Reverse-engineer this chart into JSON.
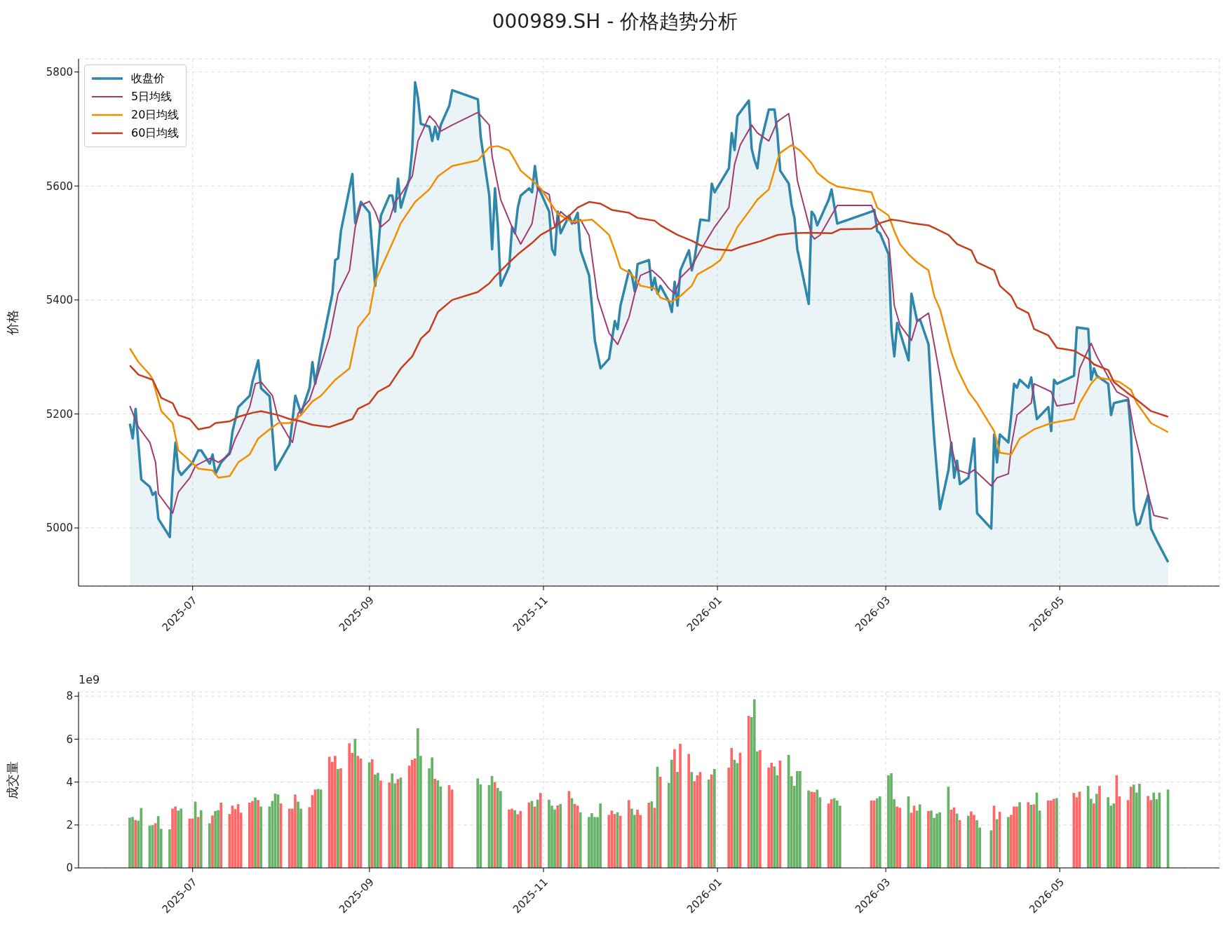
{
  "chart_data": [
    {
      "type": "line",
      "title": "000989.SH - 价格趋势分析",
      "ylabel": "价格",
      "xlim": [
        "2025-05-22",
        "2026-06-26"
      ],
      "xticks": [
        "2025-07",
        "2025-09",
        "2025-11",
        "2026-01",
        "2026-03",
        "2026-05"
      ],
      "ylim": [
        4898,
        5823
      ],
      "yticks": [
        5000,
        5200,
        5400,
        5600,
        5800
      ],
      "grid": true,
      "legend": "top left",
      "series": [
        {
          "name": "收盘价",
          "type": "area",
          "color": "#2e86ab",
          "x": [
            "2025-06-09",
            "2025-06-10",
            "2025-06-11",
            "2025-06-13",
            "2025-06-16",
            "2025-06-17",
            "2025-06-18",
            "2025-06-19",
            "2025-06-23",
            "2025-06-24",
            "2025-06-25",
            "2025-06-26",
            "2025-06-27",
            "2025-07-01",
            "2025-07-03",
            "2025-07-04",
            "2025-07-07",
            "2025-07-08",
            "2025-07-09",
            "2025-07-11",
            "2025-07-14",
            "2025-07-15",
            "2025-07-17",
            "2025-07-21",
            "2025-07-22",
            "2025-07-24",
            "2025-07-25",
            "2025-07-28",
            "2025-07-30",
            "2025-08-04",
            "2025-08-06",
            "2025-08-08",
            "2025-08-11",
            "2025-08-12",
            "2025-08-13",
            "2025-08-15",
            "2025-08-19",
            "2025-08-20",
            "2025-08-21",
            "2025-08-22",
            "2025-08-26",
            "2025-08-27",
            "2025-08-29",
            "2025-09-01",
            "2025-09-03",
            "2025-09-05",
            "2025-09-08",
            "2025-09-09",
            "2025-09-10",
            "2025-09-11",
            "2025-09-12",
            "2025-09-15",
            "2025-09-16",
            "2025-09-17",
            "2025-09-18",
            "2025-09-19",
            "2025-09-22",
            "2025-09-23",
            "2025-09-24",
            "2025-09-25",
            "2025-09-26",
            "2025-09-29",
            "2025-09-30",
            "2025-10-09",
            "2025-10-10",
            "2025-10-13",
            "2025-10-14",
            "2025-10-15",
            "2025-10-16",
            "2025-10-17",
            "2025-10-20",
            "2025-10-21",
            "2025-10-22",
            "2025-10-23",
            "2025-10-24",
            "2025-10-27",
            "2025-10-28",
            "2025-10-29",
            "2025-10-30",
            "2025-10-31",
            "2025-11-03",
            "2025-11-04",
            "2025-11-05",
            "2025-11-06",
            "2025-11-07",
            "2025-11-10",
            "2025-11-11",
            "2025-11-12",
            "2025-11-13",
            "2025-11-14",
            "2025-11-17",
            "2025-11-18",
            "2025-11-19",
            "2025-11-21",
            "2025-11-24",
            "2025-11-26",
            "2025-11-27",
            "2025-11-28",
            "2025-12-01",
            "2025-12-02",
            "2025-12-03",
            "2025-12-04",
            "2025-12-08",
            "2025-12-09",
            "2025-12-10",
            "2025-12-11",
            "2025-12-12",
            "2025-12-15",
            "2025-12-16",
            "2025-12-17",
            "2025-12-18",
            "2025-12-19",
            "2025-12-22",
            "2025-12-23",
            "2025-12-24",
            "2025-12-26",
            "2025-12-29",
            "2025-12-30",
            "2025-12-31",
            "2026-01-05",
            "2026-01-06",
            "2026-01-07",
            "2026-01-08",
            "2026-01-12",
            "2026-01-13",
            "2026-01-14",
            "2026-01-15",
            "2026-01-16",
            "2026-01-19",
            "2026-01-21",
            "2026-01-22",
            "2026-01-23",
            "2026-01-26",
            "2026-01-27",
            "2026-01-28",
            "2026-01-29",
            "2026-02-02",
            "2026-02-03",
            "2026-02-04",
            "2026-02-05",
            "2026-02-09",
            "2026-02-10",
            "2026-02-12",
            "2026-02-24",
            "2026-02-25",
            "2026-02-26",
            "2026-02-27",
            "2026-03-02",
            "2026-03-03",
            "2026-03-04",
            "2026-03-05",
            "2026-03-09",
            "2026-03-10",
            "2026-03-12",
            "2026-03-13",
            "2026-03-16",
            "2026-03-17",
            "2026-03-18",
            "2026-03-20",
            "2026-03-23",
            "2026-03-24",
            "2026-03-25",
            "2026-03-26",
            "2026-03-27",
            "2026-03-30",
            "2026-04-01",
            "2026-04-02",
            "2026-04-07",
            "2026-04-08",
            "2026-04-09",
            "2026-04-10",
            "2026-04-13",
            "2026-04-14",
            "2026-04-15",
            "2026-04-16",
            "2026-04-17",
            "2026-04-20",
            "2026-04-21",
            "2026-04-22",
            "2026-04-23",
            "2026-04-27",
            "2026-04-28",
            "2026-04-29",
            "2026-04-30",
            "2026-05-06",
            "2026-05-07",
            "2026-05-11",
            "2026-05-12",
            "2026-05-13",
            "2026-05-14",
            "2026-05-18",
            "2026-05-19",
            "2026-05-20",
            "2026-05-25",
            "2026-05-26",
            "2026-05-27",
            "2026-05-28",
            "2026-05-29",
            "2026-06-01",
            "2026-06-02",
            "2026-06-04",
            "2026-06-08"
          ],
          "values": [
            5183,
            5157,
            5209,
            5085,
            5072,
            5058,
            5063,
            5016,
            4984,
            5088,
            5150,
            5102,
            5093,
            5115,
            5136,
            5136,
            5113,
            5129,
            5095,
            5115,
            5132,
            5170,
            5212,
            5232,
            5257,
            5294,
            5245,
            5231,
            5102,
            5146,
            5232,
            5201,
            5246,
            5291,
            5253,
            5312,
            5411,
            5470,
            5473,
            5521,
            5621,
            5535,
            5572,
            5553,
            5425,
            5548,
            5583,
            5583,
            5555,
            5613,
            5562,
            5613,
            5665,
            5782,
            5755,
            5709,
            5704,
            5679,
            5704,
            5682,
            5707,
            5741,
            5768,
            5752,
            5686,
            5583,
            5489,
            5596,
            5531,
            5425,
            5459,
            5528,
            5517,
            5562,
            5583,
            5596,
            5589,
            5635,
            5596,
            5589,
            5555,
            5489,
            5479,
            5555,
            5517,
            5548,
            5534,
            5541,
            5553,
            5487,
            5443,
            5388,
            5329,
            5280,
            5297,
            5363,
            5349,
            5390,
            5452,
            5443,
            5415,
            5463,
            5470,
            5418,
            5439,
            5411,
            5425,
            5397,
            5379,
            5432,
            5390,
            5452,
            5487,
            5452,
            5473,
            5541,
            5539,
            5604,
            5589,
            5631,
            5693,
            5663,
            5723,
            5750,
            5665,
            5645,
            5631,
            5672,
            5734,
            5734,
            5693,
            5627,
            5604,
            5566,
            5544,
            5489,
            5393,
            5555,
            5548,
            5531,
            5576,
            5594,
            5534,
            5555,
            5558,
            5521,
            5517,
            5480,
            5349,
            5301,
            5360,
            5294,
            5411,
            5363,
            5366,
            5322,
            5232,
            5157,
            5033,
            5102,
            5150,
            5088,
            5118,
            5077,
            5088,
            5157,
            5026,
            4999,
            5164,
            5115,
            5164,
            5150,
            5198,
            5253,
            5246,
            5260,
            5246,
            5264,
            5225,
            5191,
            5212,
            5170,
            5260,
            5253,
            5267,
            5352,
            5349,
            5260,
            5280,
            5267,
            5253,
            5198,
            5219,
            5225,
            5164,
            5033,
            5005,
            5008,
            5058,
            4999,
            4978,
            4940
          ]
        },
        {
          "name": "5日均线",
          "type": "line",
          "color": "#a23b72",
          "x": [
            "2025-06-09",
            "2025-06-12",
            "2025-06-16",
            "2025-06-18",
            "2025-06-19",
            "2025-06-20",
            "2025-06-24",
            "2025-06-26",
            "2025-06-30",
            "2025-07-02",
            "2025-07-07",
            "2025-07-08",
            "2025-07-10",
            "2025-07-14",
            "2025-07-16",
            "2025-07-18",
            "2025-07-21",
            "2025-07-23",
            "2025-07-25",
            "2025-07-29",
            "2025-07-31",
            "2025-08-04",
            "2025-08-05",
            "2025-08-07",
            "2025-08-11",
            "2025-08-14",
            "2025-08-18",
            "2025-08-21",
            "2025-08-25",
            "2025-08-27",
            "2025-08-29",
            "2025-09-01",
            "2025-09-03",
            "2025-09-05",
            "2025-09-08",
            "2025-09-10",
            "2025-09-12",
            "2025-09-16",
            "2025-09-18",
            "2025-09-22",
            "2025-09-24",
            "2025-09-26",
            "2025-09-30",
            "2025-10-09",
            "2025-10-13",
            "2025-10-14",
            "2025-10-17",
            "2025-10-21",
            "2025-10-24",
            "2025-10-28",
            "2025-10-30",
            "2025-11-03",
            "2025-11-05",
            "2025-11-07",
            "2025-11-12",
            "2025-11-14",
            "2025-11-17",
            "2025-11-20",
            "2025-11-24",
            "2025-11-27",
            "2025-12-01",
            "2025-12-03",
            "2025-12-05",
            "2025-12-09",
            "2025-12-12",
            "2025-12-15",
            "2025-12-17",
            "2025-12-19",
            "2025-12-23",
            "2025-12-26",
            "2025-12-31",
            "2026-01-05",
            "2026-01-07",
            "2026-01-09",
            "2026-01-13",
            "2026-01-15",
            "2026-01-19",
            "2026-01-22",
            "2026-01-26",
            "2026-01-28",
            "2026-01-29",
            "2026-02-03",
            "2026-02-04",
            "2026-02-06",
            "2026-02-12",
            "2026-02-24",
            "2026-02-26",
            "2026-03-02",
            "2026-03-04",
            "2026-03-06",
            "2026-03-10",
            "2026-03-12",
            "2026-03-16",
            "2026-03-18",
            "2026-03-20",
            "2026-03-24",
            "2026-03-26",
            "2026-03-30",
            "2026-04-01",
            "2026-04-07",
            "2026-04-09",
            "2026-04-13",
            "2026-04-14",
            "2026-04-16",
            "2026-04-21",
            "2026-04-22",
            "2026-04-28",
            "2026-04-30",
            "2026-05-06",
            "2026-05-08",
            "2026-05-12",
            "2026-05-14",
            "2026-05-19",
            "2026-05-21",
            "2026-05-25",
            "2026-05-27",
            "2026-05-29",
            "2026-06-01",
            "2026-06-03",
            "2026-06-08"
          ],
          "values": [
            5214,
            5177,
            5150,
            5115,
            5060,
            5053,
            5026,
            5063,
            5088,
            5109,
            5122,
            5121,
            5115,
            5129,
            5157,
            5177,
            5212,
            5253,
            5256,
            5232,
            5191,
            5157,
            5150,
            5201,
            5225,
            5270,
            5335,
            5411,
            5452,
            5528,
            5566,
            5573,
            5555,
            5528,
            5541,
            5572,
            5585,
            5617,
            5679,
            5723,
            5713,
            5696,
            5707,
            5729,
            5707,
            5652,
            5576,
            5528,
            5498,
            5534,
            5596,
            5585,
            5528,
            5555,
            5534,
            5541,
            5513,
            5404,
            5342,
            5322,
            5370,
            5411,
            5443,
            5452,
            5439,
            5420,
            5411,
            5439,
            5459,
            5487,
            5528,
            5562,
            5638,
            5672,
            5707,
            5693,
            5679,
            5713,
            5727,
            5658,
            5610,
            5514,
            5507,
            5514,
            5566,
            5566,
            5541,
            5507,
            5390,
            5356,
            5329,
            5363,
            5377,
            5322,
            5267,
            5143,
            5102,
            5095,
            5102,
            5074,
            5088,
            5095,
            5143,
            5198,
            5219,
            5253,
            5239,
            5214,
            5219,
            5280,
            5324,
            5301,
            5256,
            5239,
            5228,
            5170,
            5129,
            5060,
            5022,
            5016
          ]
        },
        {
          "name": "20日均线",
          "type": "line",
          "color": "#f18f01",
          "x": [
            "2025-06-09",
            "2025-06-12",
            "2025-06-16",
            "2025-06-17",
            "2025-06-20",
            "2025-06-24",
            "2025-06-26",
            "2025-06-30",
            "2025-07-03",
            "2025-07-08",
            "2025-07-10",
            "2025-07-14",
            "2025-07-17",
            "2025-07-21",
            "2025-07-24",
            "2025-07-28",
            "2025-07-31",
            "2025-08-04",
            "2025-08-08",
            "2025-08-12",
            "2025-08-15",
            "2025-08-20",
            "2025-08-25",
            "2025-08-28",
            "2025-09-01",
            "2025-09-03",
            "2025-09-05",
            "2025-09-10",
            "2025-09-12",
            "2025-09-17",
            "2025-09-22",
            "2025-09-25",
            "2025-09-30",
            "2025-10-09",
            "2025-10-13",
            "2025-10-16",
            "2025-10-20",
            "2025-10-22",
            "2025-10-24",
            "2025-10-28",
            "2025-10-31",
            "2025-11-04",
            "2025-11-06",
            "2025-11-11",
            "2025-11-14",
            "2025-11-18",
            "2025-11-21",
            "2025-11-24",
            "2025-11-26",
            "2025-11-28",
            "2025-12-01",
            "2025-12-03",
            "2025-12-05",
            "2025-12-10",
            "2025-12-12",
            "2025-12-16",
            "2025-12-19",
            "2025-12-23",
            "2025-12-25",
            "2025-12-30",
            "2026-01-02",
            "2026-01-06",
            "2026-01-08",
            "2026-01-12",
            "2026-01-15",
            "2026-01-19",
            "2026-01-22",
            "2026-01-23",
            "2026-01-27",
            "2026-01-30",
            "2026-02-03",
            "2026-02-05",
            "2026-02-09",
            "2026-02-12",
            "2026-02-24",
            "2026-02-26",
            "2026-03-02",
            "2026-03-04",
            "2026-03-06",
            "2026-03-09",
            "2026-03-12",
            "2026-03-16",
            "2026-03-18",
            "2026-03-20",
            "2026-03-24",
            "2026-03-26",
            "2026-03-30",
            "2026-04-02",
            "2026-04-08",
            "2026-04-10",
            "2026-04-14",
            "2026-04-17",
            "2026-04-22",
            "2026-04-28",
            "2026-05-06",
            "2026-05-08",
            "2026-05-12",
            "2026-05-14",
            "2026-05-19",
            "2026-05-22",
            "2026-05-26",
            "2026-05-28",
            "2026-06-02",
            "2026-06-08"
          ],
          "values": [
            5315,
            5291,
            5269,
            5260,
            5205,
            5184,
            5136,
            5118,
            5104,
            5101,
            5088,
            5091,
            5115,
            5129,
            5157,
            5173,
            5184,
            5184,
            5198,
            5222,
            5232,
            5260,
            5280,
            5352,
            5377,
            5432,
            5455,
            5511,
            5535,
            5572,
            5594,
            5617,
            5635,
            5645,
            5668,
            5670,
            5662,
            5645,
            5627,
            5610,
            5596,
            5566,
            5551,
            5537,
            5539,
            5541,
            5528,
            5514,
            5487,
            5456,
            5448,
            5439,
            5425,
            5420,
            5404,
            5397,
            5407,
            5425,
            5445,
            5459,
            5470,
            5507,
            5528,
            5555,
            5576,
            5594,
            5645,
            5658,
            5672,
            5662,
            5640,
            5623,
            5607,
            5599,
            5589,
            5562,
            5548,
            5521,
            5498,
            5480,
            5466,
            5452,
            5407,
            5384,
            5308,
            5280,
            5239,
            5219,
            5170,
            5132,
            5129,
            5157,
            5173,
            5184,
            5191,
            5219,
            5253,
            5264,
            5260,
            5256,
            5242,
            5219,
            5184,
            5168
          ]
        },
        {
          "name": "60日均线",
          "type": "line",
          "color": "#c73e1d",
          "x": [
            "2025-06-09",
            "2025-06-12",
            "2025-06-17",
            "2025-06-20",
            "2025-06-24",
            "2025-06-26",
            "2025-06-30",
            "2025-07-03",
            "2025-07-07",
            "2025-07-09",
            "2025-07-14",
            "2025-07-17",
            "2025-07-22",
            "2025-07-25",
            "2025-07-31",
            "2025-08-04",
            "2025-08-08",
            "2025-08-12",
            "2025-08-18",
            "2025-08-22",
            "2025-08-26",
            "2025-08-28",
            "2025-09-01",
            "2025-09-04",
            "2025-09-08",
            "2025-09-12",
            "2025-09-16",
            "2025-09-19",
            "2025-09-22",
            "2025-09-25",
            "2025-09-30",
            "2025-10-09",
            "2025-10-13",
            "2025-10-15",
            "2025-10-20",
            "2025-10-23",
            "2025-10-28",
            "2025-10-31",
            "2025-11-05",
            "2025-11-10",
            "2025-11-13",
            "2025-11-17",
            "2025-11-21",
            "2025-11-25",
            "2025-12-01",
            "2025-12-04",
            "2025-12-10",
            "2025-12-12",
            "2025-12-18",
            "2025-12-23",
            "2025-12-26",
            "2025-12-31",
            "2026-01-06",
            "2026-01-09",
            "2026-01-16",
            "2026-01-22",
            "2026-01-27",
            "2026-02-02",
            "2026-02-10",
            "2026-02-13",
            "2026-02-24",
            "2026-02-27",
            "2026-03-03",
            "2026-03-06",
            "2026-03-10",
            "2026-03-16",
            "2026-03-19",
            "2026-03-23",
            "2026-03-26",
            "2026-03-31",
            "2026-04-02",
            "2026-04-08",
            "2026-04-10",
            "2026-04-14",
            "2026-04-16",
            "2026-04-20",
            "2026-04-22",
            "2026-04-27",
            "2026-04-30",
            "2026-05-06",
            "2026-05-11",
            "2026-05-13",
            "2026-05-18",
            "2026-05-20",
            "2026-05-25",
            "2026-05-28",
            "2026-06-02",
            "2026-06-08"
          ],
          "values": [
            5285,
            5269,
            5260,
            5228,
            5219,
            5198,
            5191,
            5173,
            5177,
            5184,
            5187,
            5195,
            5202,
            5205,
            5198,
            5191,
            5187,
            5181,
            5177,
            5184,
            5191,
            5209,
            5219,
            5239,
            5250,
            5280,
            5301,
            5332,
            5346,
            5379,
            5400,
            5414,
            5429,
            5441,
            5466,
            5480,
            5500,
            5514,
            5528,
            5548,
            5562,
            5572,
            5569,
            5558,
            5553,
            5544,
            5539,
            5531,
            5514,
            5504,
            5496,
            5489,
            5487,
            5493,
            5503,
            5514,
            5517,
            5518,
            5517,
            5524,
            5525,
            5535,
            5541,
            5539,
            5535,
            5531,
            5524,
            5514,
            5498,
            5487,
            5466,
            5452,
            5425,
            5407,
            5387,
            5377,
            5349,
            5338,
            5316,
            5311,
            5297,
            5287,
            5277,
            5256,
            5236,
            5225,
            5205,
            5195
          ]
        }
      ]
    },
    {
      "type": "bar",
      "ylabel": "成交量",
      "annotations": [
        "1e9"
      ],
      "xlim": [
        "2025-05-22",
        "2026-06-26"
      ],
      "xticks": [
        "2025-07",
        "2025-09",
        "2025-11",
        "2026-01",
        "2026-03",
        "2026-05"
      ],
      "ylim": [
        0,
        8.2
      ],
      "yticks": [
        0,
        2,
        4,
        6,
        8
      ],
      "grid": true,
      "x": [
        "2025-06-09",
        "2025-06-10",
        "2025-06-11",
        "2025-06-12",
        "2025-06-13",
        "2025-06-16",
        "2025-06-17",
        "2025-06-18",
        "2025-06-19",
        "2025-06-20",
        "2025-06-23",
        "2025-06-24",
        "2025-06-25",
        "2025-06-26",
        "2025-06-27",
        "2025-06-30",
        "2025-07-01",
        "2025-07-02",
        "2025-07-03",
        "2025-07-04",
        "2025-07-07",
        "2025-07-08",
        "2025-07-09",
        "2025-07-10",
        "2025-07-11",
        "2025-07-14",
        "2025-07-15",
        "2025-07-16",
        "2025-07-17",
        "2025-07-18",
        "2025-07-21",
        "2025-07-22",
        "2025-07-23",
        "2025-07-24",
        "2025-07-25",
        "2025-07-28",
        "2025-07-29",
        "2025-07-30",
        "2025-07-31",
        "2025-08-01",
        "2025-08-04",
        "2025-08-05",
        "2025-08-06",
        "2025-08-07",
        "2025-08-08",
        "2025-08-11",
        "2025-08-12",
        "2025-08-13",
        "2025-08-14",
        "2025-08-15",
        "2025-08-18",
        "2025-08-19",
        "2025-08-20",
        "2025-08-21",
        "2025-08-22",
        "2025-08-25",
        "2025-08-26",
        "2025-08-27",
        "2025-08-28",
        "2025-08-29",
        "2025-09-01",
        "2025-09-02",
        "2025-09-03",
        "2025-09-04",
        "2025-09-05",
        "2025-09-08",
        "2025-09-09",
        "2025-09-10",
        "2025-09-11",
        "2025-09-12",
        "2025-09-15",
        "2025-09-16",
        "2025-09-17",
        "2025-09-18",
        "2025-09-19",
        "2025-09-22",
        "2025-09-23",
        "2025-09-24",
        "2025-09-25",
        "2025-09-26",
        "2025-09-29",
        "2025-09-30",
        "2025-10-09",
        "2025-10-10",
        "2025-10-13",
        "2025-10-14",
        "2025-10-15",
        "2025-10-16",
        "2025-10-17",
        "2025-10-20",
        "2025-10-21",
        "2025-10-22",
        "2025-10-23",
        "2025-10-24",
        "2025-10-27",
        "2025-10-28",
        "2025-10-29",
        "2025-10-30",
        "2025-10-31",
        "2025-11-03",
        "2025-11-04",
        "2025-11-05",
        "2025-11-06",
        "2025-11-07",
        "2025-11-10",
        "2025-11-11",
        "2025-11-12",
        "2025-11-13",
        "2025-11-14",
        "2025-11-17",
        "2025-11-18",
        "2025-11-19",
        "2025-11-20",
        "2025-11-21",
        "2025-11-24",
        "2025-11-25",
        "2025-11-26",
        "2025-11-27",
        "2025-11-28",
        "2025-12-01",
        "2025-12-02",
        "2025-12-03",
        "2025-12-04",
        "2025-12-05",
        "2025-12-08",
        "2025-12-09",
        "2025-12-10",
        "2025-12-11",
        "2025-12-12",
        "2025-12-15",
        "2025-12-16",
        "2025-12-17",
        "2025-12-18",
        "2025-12-19",
        "2025-12-22",
        "2025-12-23",
        "2025-12-24",
        "2025-12-25",
        "2025-12-26",
        "2025-12-29",
        "2025-12-30",
        "2025-12-31",
        "2026-01-05",
        "2026-01-06",
        "2026-01-07",
        "2026-01-08",
        "2026-01-09",
        "2026-01-12",
        "2026-01-13",
        "2026-01-14",
        "2026-01-15",
        "2026-01-16",
        "2026-01-19",
        "2026-01-20",
        "2026-01-21",
        "2026-01-22",
        "2026-01-23",
        "2026-01-26",
        "2026-01-27",
        "2026-01-28",
        "2026-01-29",
        "2026-01-30",
        "2026-02-02",
        "2026-02-03",
        "2026-02-04",
        "2026-02-05",
        "2026-02-06",
        "2026-02-09",
        "2026-02-10",
        "2026-02-11",
        "2026-02-12",
        "2026-02-13",
        "2026-02-24",
        "2026-02-25",
        "2026-02-26",
        "2026-02-27",
        "2026-03-02",
        "2026-03-03",
        "2026-03-04",
        "2026-03-05",
        "2026-03-06",
        "2026-03-09",
        "2026-03-10",
        "2026-03-11",
        "2026-03-12",
        "2026-03-13",
        "2026-03-16",
        "2026-03-17",
        "2026-03-18",
        "2026-03-19",
        "2026-03-20",
        "2026-03-23",
        "2026-03-24",
        "2026-03-25",
        "2026-03-26",
        "2026-03-27",
        "2026-03-30",
        "2026-03-31",
        "2026-04-01",
        "2026-04-02",
        "2026-04-03",
        "2026-04-07",
        "2026-04-08",
        "2026-04-09",
        "2026-04-10",
        "2026-04-13",
        "2026-04-14",
        "2026-04-15",
        "2026-04-16",
        "2026-04-17",
        "2026-04-20",
        "2026-04-21",
        "2026-04-22",
        "2026-04-23",
        "2026-04-24",
        "2026-04-27",
        "2026-04-28",
        "2026-04-29",
        "2026-04-30",
        "2026-05-06",
        "2026-05-07",
        "2026-05-08",
        "2026-05-11",
        "2026-05-12",
        "2026-05-13",
        "2026-05-14",
        "2026-05-15",
        "2026-05-18",
        "2026-05-19",
        "2026-05-20",
        "2026-05-21",
        "2026-05-22",
        "2026-05-25",
        "2026-05-26",
        "2026-05-27",
        "2026-05-28",
        "2026-05-29",
        "2026-06-01",
        "2026-06-02",
        "2026-06-03",
        "2026-06-04",
        "2026-06-05",
        "2026-06-08"
      ],
      "values": [
        2.34,
        2.37,
        2.23,
        2.2,
        2.79,
        1.97,
        2.0,
        2.08,
        2.41,
        1.82,
        1.8,
        2.76,
        2.86,
        2.67,
        2.76,
        2.3,
        2.3,
        3.09,
        2.37,
        2.69,
        2.08,
        2.44,
        2.65,
        2.69,
        3.04,
        2.51,
        2.9,
        2.74,
        2.97,
        2.57,
        3.04,
        3.11,
        3.28,
        3.16,
        2.86,
        2.86,
        3.12,
        3.46,
        3.42,
        3.0,
        2.76,
        2.76,
        3.42,
        3.09,
        2.76,
        2.83,
        3.39,
        3.65,
        3.68,
        3.65,
        5.18,
        4.94,
        5.22,
        4.61,
        4.64,
        5.81,
        5.36,
        6.02,
        5.22,
        5.1,
        4.92,
        5.06,
        4.35,
        4.43,
        4.07,
        3.98,
        4.4,
        3.94,
        4.14,
        4.21,
        4.76,
        5.03,
        5.1,
        6.51,
        5.22,
        4.64,
        5.15,
        4.15,
        4.08,
        3.79,
        3.86,
        3.65,
        4.17,
        3.89,
        3.86,
        4.28,
        4.0,
        3.73,
        3.58,
        2.72,
        2.76,
        2.69,
        2.5,
        2.65,
        3.05,
        3.12,
        2.86,
        3.18,
        3.49,
        3.18,
        2.9,
        2.72,
        2.91,
        2.98,
        3.58,
        3.25,
        2.98,
        2.9,
        2.59,
        2.37,
        2.55,
        2.37,
        2.37,
        3.0,
        2.47,
        2.67,
        2.51,
        2.59,
        2.43,
        3.16,
        2.76,
        2.47,
        2.71,
        2.47,
        3.04,
        3.1,
        2.8,
        4.71,
        4.25,
        3.96,
        5.04,
        5.53,
        4.47,
        5.78,
        5.31,
        4.47,
        4.04,
        4.31,
        4.47,
        4.12,
        4.35,
        4.61,
        4.67,
        5.59,
        5.04,
        4.88,
        5.37,
        7.08,
        7.02,
        7.86,
        5.43,
        5.49,
        4.67,
        4.9,
        4.73,
        4.31,
        5.0,
        5.27,
        4.27,
        3.82,
        4.51,
        4.51,
        3.61,
        3.55,
        3.53,
        3.65,
        3.29,
        3.0,
        3.2,
        3.25,
        3.14,
        2.9,
        3.14,
        3.14,
        3.24,
        3.33,
        4.31,
        4.41,
        3.2,
        2.86,
        2.8,
        3.33,
        2.57,
        2.9,
        2.67,
        2.96,
        2.65,
        2.67,
        2.33,
        2.53,
        2.59,
        3.78,
        2.71,
        2.82,
        2.53,
        2.22,
        2.43,
        2.63,
        2.47,
        2.22,
        1.88,
        1.75,
        2.9,
        2.27,
        2.61,
        2.37,
        2.47,
        2.86,
        2.86,
        3.06,
        3.06,
        2.94,
        2.96,
        3.51,
        2.67,
        3.14,
        3.14,
        3.22,
        3.25,
        3.49,
        3.29,
        3.55,
        3.82,
        3.22,
        3.0,
        3.45,
        3.82,
        3.29,
        2.9,
        3.0,
        4.31,
        3.33,
        3.16,
        3.78,
        3.88,
        3.51,
        3.92,
        3.35,
        3.16,
        3.51,
        3.2,
        3.51,
        3.65
      ],
      "colors": [
        "#66b266",
        "#66b266",
        "#ff6666",
        "#66b266",
        "#66b266",
        "#66b266",
        "#66b266",
        "#ff6666",
        "#66b266",
        "#66b266",
        "#66b266",
        "#ff6666",
        "#ff6666",
        "#66b266",
        "#66b266",
        "#ff6666",
        "#ff6666",
        "#66b266",
        "#ff6666",
        "#66b266",
        "#66b266",
        "#ff6666",
        "#66b266",
        "#66b266",
        "#ff6666",
        "#ff6666",
        "#ff6666",
        "#ff6666",
        "#ff6666",
        "#ff6666",
        "#ff6666",
        "#ff6666",
        "#66b266",
        "#ff6666",
        "#66b266",
        "#66b266",
        "#66b266",
        "#66b266",
        "#66b266",
        "#ff6666",
        "#ff6666",
        "#ff6666",
        "#ff6666",
        "#66b266",
        "#66b266",
        "#ff6666",
        "#ff6666",
        "#ff6666",
        "#66b266",
        "#66b266",
        "#ff6666",
        "#ff6666",
        "#ff6666",
        "#66b266",
        "#ff6666",
        "#ff6666",
        "#ff6666",
        "#66b266",
        "#ff6666",
        "#ff6666",
        "#66b266",
        "#ff6666",
        "#66b266",
        "#66b266",
        "#ff6666",
        "#ff6666",
        "#66b266",
        "#66b266",
        "#ff6666",
        "#66b266",
        "#ff6666",
        "#ff6666",
        "#ff6666",
        "#66b266",
        "#66b266",
        "#66b266",
        "#66b266",
        "#ff6666",
        "#66b266",
        "#66b266",
        "#ff6666",
        "#ff6666",
        "#66b266",
        "#66b266",
        "#66b266",
        "#66b266",
        "#ff6666",
        "#66b266",
        "#66b266",
        "#ff6666",
        "#ff6666",
        "#66b266",
        "#ff6666",
        "#ff6666",
        "#ff6666",
        "#66b266",
        "#ff6666",
        "#66b266",
        "#ff6666",
        "#66b266",
        "#66b266",
        "#66b266",
        "#ff6666",
        "#66b266",
        "#ff6666",
        "#66b266",
        "#ff6666",
        "#ff6666",
        "#66b266",
        "#66b266",
        "#66b266",
        "#66b266",
        "#66b266",
        "#66b266",
        "#ff6666",
        "#ff6666",
        "#ff6666",
        "#66b266",
        "#ff6666",
        "#ff6666",
        "#66b266",
        "#66b266",
        "#ff6666",
        "#ff6666",
        "#ff6666",
        "#66b266",
        "#ff6666",
        "#66b266",
        "#ff6666",
        "#66b266",
        "#66b266",
        "#ff6666",
        "#66b266",
        "#ff6666",
        "#ff6666",
        "#66b266",
        "#ff6666",
        "#ff6666",
        "#ff6666",
        "#66b266",
        "#ff6666",
        "#66b266",
        "#ff6666",
        "#ff6666",
        "#66b266",
        "#66b266",
        "#ff6666",
        "#ff6666",
        "#66b266",
        "#66b266",
        "#66b266",
        "#ff6666",
        "#ff6666",
        "#ff6666",
        "#66b266",
        "#66b266",
        "#ff6666",
        "#66b266",
        "#66b266",
        "#66b266",
        "#66b266",
        "#66b266",
        "#66b266",
        "#ff6666",
        "#ff6666",
        "#66b266",
        "#66b266",
        "#ff6666",
        "#ff6666",
        "#66b266",
        "#66b266",
        "#66b266",
        "#ff6666",
        "#ff6666",
        "#66b266",
        "#66b266",
        "#66b266",
        "#66b266",
        "#66b266",
        "#ff6666",
        "#ff6666",
        "#66b266",
        "#ff6666",
        "#ff6666",
        "#66b266",
        "#66b266",
        "#ff6666",
        "#66b266",
        "#66b266",
        "#66b266",
        "#66b266",
        "#66b266",
        "#ff6666",
        "#ff6666",
        "#66b266",
        "#ff6666",
        "#66b266",
        "#ff6666",
        "#ff6666",
        "#66b266",
        "#66b266",
        "#66b266",
        "#ff6666",
        "#66b266",
        "#ff6666",
        "#66b266",
        "#ff6666",
        "#ff6666",
        "#ff6666",
        "#66b266",
        "#ff6666",
        "#66b266",
        "#ff6666",
        "#66b266",
        "#66b266",
        "#ff6666",
        "#ff6666",
        "#ff6666",
        "#66b266",
        "#ff6666",
        "#ff6666",
        "#ff6666",
        "#66b266",
        "#66b266",
        "#ff6666",
        "#66b266",
        "#ff6666",
        "#66b266",
        "#66b266",
        "#66b266",
        "#ff6666",
        "#ff6666",
        "#ff6666",
        "#ff6666",
        "#66b266",
        "#66b266",
        "#66b266",
        "#ff6666",
        "#ff6666",
        "#66b266",
        "#66b266",
        "#66b266",
        "#66b266"
      ]
    }
  ]
}
